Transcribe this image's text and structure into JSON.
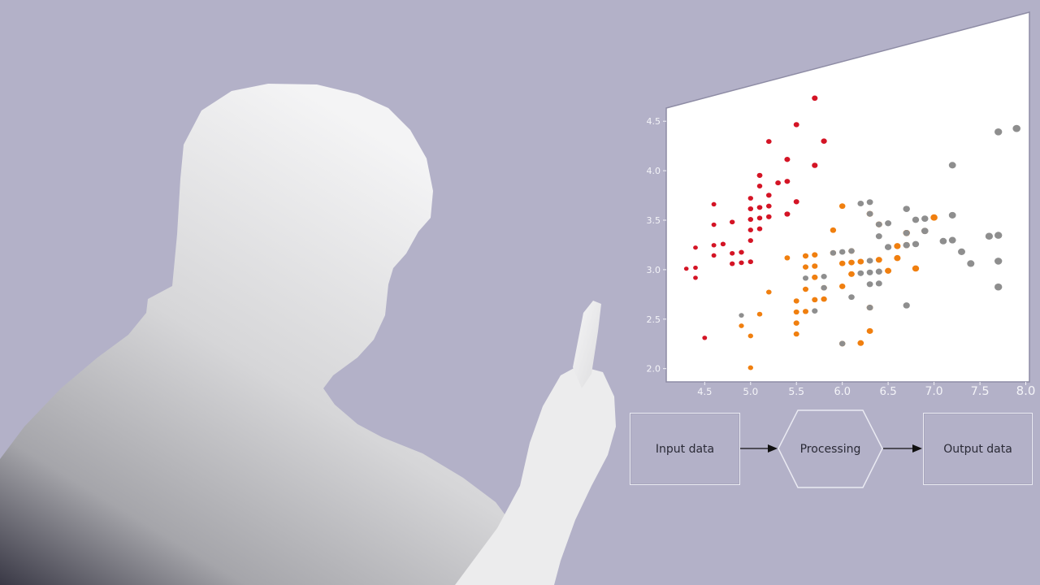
{
  "colors": {
    "background": "#b3b1c8",
    "person_light": "#f3f3f4",
    "person_dark": "#3a3946",
    "chart_panel": "#ffffff",
    "tick_text": "#f4f4f8",
    "arrow": "#111111"
  },
  "flow": {
    "input_label": "Input data",
    "processing_label": "Processing",
    "output_label": "Output data"
  },
  "chart_data": {
    "type": "scatter",
    "title": "",
    "xlabel": "",
    "ylabel": "",
    "xlim": [
      4.2,
      8.0
    ],
    "ylim": [
      1.95,
      4.55
    ],
    "x_ticks": [
      4.5,
      5.0,
      5.5,
      6.0,
      6.5,
      7.0,
      7.5,
      8.0
    ],
    "x_tick_labels": [
      "4.5",
      "5.0",
      "5.5",
      "6.0",
      "6.5",
      "7.0",
      "7.5",
      "8.0"
    ],
    "y_ticks": [
      2.0,
      2.5,
      3.0,
      3.5,
      4.0,
      4.5
    ],
    "y_tick_labels": [
      "2.0",
      "2.5",
      "3.0",
      "3.5",
      "4.0",
      "4.5"
    ],
    "grid": false,
    "series": [
      {
        "color": "#d41425",
        "points": [
          [
            5.1,
            3.5
          ],
          [
            4.9,
            3.0
          ],
          [
            4.7,
            3.2
          ],
          [
            4.6,
            3.1
          ],
          [
            5.0,
            3.6
          ],
          [
            5.4,
            3.9
          ],
          [
            4.6,
            3.4
          ],
          [
            5.0,
            3.4
          ],
          [
            4.4,
            2.9
          ],
          [
            4.9,
            3.1
          ],
          [
            5.4,
            3.7
          ],
          [
            4.8,
            3.4
          ],
          [
            4.8,
            3.0
          ],
          [
            4.3,
            3.0
          ],
          [
            5.8,
            4.0
          ],
          [
            5.7,
            4.4
          ],
          [
            5.4,
            3.9
          ],
          [
            5.1,
            3.5
          ],
          [
            5.7,
            3.8
          ],
          [
            5.1,
            3.8
          ],
          [
            5.4,
            3.4
          ],
          [
            5.1,
            3.7
          ],
          [
            4.6,
            3.6
          ],
          [
            5.1,
            3.3
          ],
          [
            4.8,
            3.4
          ],
          [
            5.0,
            3.0
          ],
          [
            5.0,
            3.4
          ],
          [
            5.2,
            3.5
          ],
          [
            5.2,
            3.4
          ],
          [
            4.7,
            3.2
          ],
          [
            4.8,
            3.1
          ],
          [
            5.4,
            3.4
          ],
          [
            5.2,
            4.1
          ],
          [
            5.5,
            4.2
          ],
          [
            4.9,
            3.1
          ],
          [
            5.0,
            3.2
          ],
          [
            5.5,
            3.5
          ],
          [
            4.4,
            3.0
          ],
          [
            5.1,
            3.4
          ],
          [
            5.0,
            3.5
          ],
          [
            4.5,
            2.3
          ],
          [
            4.4,
            3.2
          ],
          [
            5.0,
            3.5
          ],
          [
            5.1,
            3.8
          ],
          [
            4.8,
            3.0
          ],
          [
            5.1,
            3.8
          ],
          [
            4.6,
            3.2
          ],
          [
            5.3,
            3.7
          ],
          [
            5.0,
            3.3
          ],
          [
            5.2,
            3.6
          ]
        ]
      },
      {
        "color": "#f07f0f",
        "points": [
          [
            7.0,
            3.2
          ],
          [
            6.4,
            3.2
          ],
          [
            6.9,
            3.1
          ],
          [
            5.5,
            2.3
          ],
          [
            6.5,
            2.8
          ],
          [
            5.7,
            2.8
          ],
          [
            6.3,
            3.3
          ],
          [
            4.9,
            2.4
          ],
          [
            6.6,
            2.9
          ],
          [
            5.2,
            2.7
          ],
          [
            5.0,
            2.0
          ],
          [
            5.9,
            3.0
          ],
          [
            6.0,
            2.2
          ],
          [
            6.1,
            2.9
          ],
          [
            5.6,
            2.9
          ],
          [
            6.7,
            3.1
          ],
          [
            5.6,
            3.0
          ],
          [
            5.8,
            2.7
          ],
          [
            6.2,
            2.2
          ],
          [
            5.6,
            2.5
          ],
          [
            5.9,
            3.2
          ],
          [
            6.1,
            2.8
          ],
          [
            6.3,
            2.5
          ],
          [
            6.1,
            2.8
          ],
          [
            6.4,
            2.9
          ],
          [
            6.6,
            3.0
          ],
          [
            6.8,
            2.8
          ],
          [
            6.7,
            3.0
          ],
          [
            6.0,
            2.9
          ],
          [
            5.7,
            2.6
          ],
          [
            5.5,
            2.4
          ],
          [
            5.5,
            2.4
          ],
          [
            5.8,
            2.7
          ],
          [
            6.0,
            2.7
          ],
          [
            5.4,
            3.0
          ],
          [
            6.0,
            3.4
          ],
          [
            6.7,
            3.1
          ],
          [
            6.3,
            2.3
          ],
          [
            5.6,
            3.0
          ],
          [
            5.5,
            2.5
          ],
          [
            5.5,
            2.6
          ],
          [
            6.1,
            3.0
          ],
          [
            5.8,
            2.6
          ],
          [
            5.0,
            2.3
          ],
          [
            5.6,
            2.7
          ],
          [
            5.7,
            3.0
          ],
          [
            5.7,
            2.9
          ],
          [
            6.2,
            2.9
          ],
          [
            5.1,
            2.5
          ],
          [
            5.7,
            2.8
          ]
        ]
      },
      {
        "color": "#8e8e8e",
        "points": [
          [
            6.3,
            3.3
          ],
          [
            5.8,
            2.7
          ],
          [
            7.1,
            3.0
          ],
          [
            6.3,
            2.9
          ],
          [
            6.5,
            3.0
          ],
          [
            7.6,
            3.0
          ],
          [
            4.9,
            2.5
          ],
          [
            7.3,
            2.9
          ],
          [
            6.7,
            2.5
          ],
          [
            7.2,
            3.6
          ],
          [
            6.5,
            3.2
          ],
          [
            6.4,
            2.7
          ],
          [
            6.8,
            3.0
          ],
          [
            5.7,
            2.5
          ],
          [
            5.8,
            2.8
          ],
          [
            6.4,
            3.2
          ],
          [
            6.5,
            3.0
          ],
          [
            7.7,
            3.8
          ],
          [
            7.7,
            2.6
          ],
          [
            6.0,
            2.2
          ],
          [
            6.9,
            3.2
          ],
          [
            5.6,
            2.8
          ],
          [
            7.7,
            2.8
          ],
          [
            6.3,
            2.7
          ],
          [
            6.7,
            3.3
          ],
          [
            7.2,
            3.2
          ],
          [
            6.2,
            2.8
          ],
          [
            6.1,
            3.0
          ],
          [
            6.4,
            2.8
          ],
          [
            7.2,
            3.0
          ],
          [
            7.4,
            2.8
          ],
          [
            7.9,
            3.8
          ],
          [
            6.4,
            2.8
          ],
          [
            6.3,
            2.8
          ],
          [
            6.1,
            2.6
          ],
          [
            7.7,
            3.0
          ],
          [
            6.3,
            3.4
          ],
          [
            6.4,
            3.1
          ],
          [
            6.0,
            3.0
          ],
          [
            6.9,
            3.1
          ],
          [
            6.7,
            3.1
          ],
          [
            6.9,
            3.1
          ],
          [
            5.8,
            2.7
          ],
          [
            6.8,
            3.2
          ],
          [
            6.7,
            3.3
          ],
          [
            6.7,
            3.0
          ],
          [
            6.3,
            2.5
          ],
          [
            6.5,
            3.0
          ],
          [
            6.2,
            3.4
          ],
          [
            5.9,
            3.0
          ]
        ]
      }
    ]
  }
}
